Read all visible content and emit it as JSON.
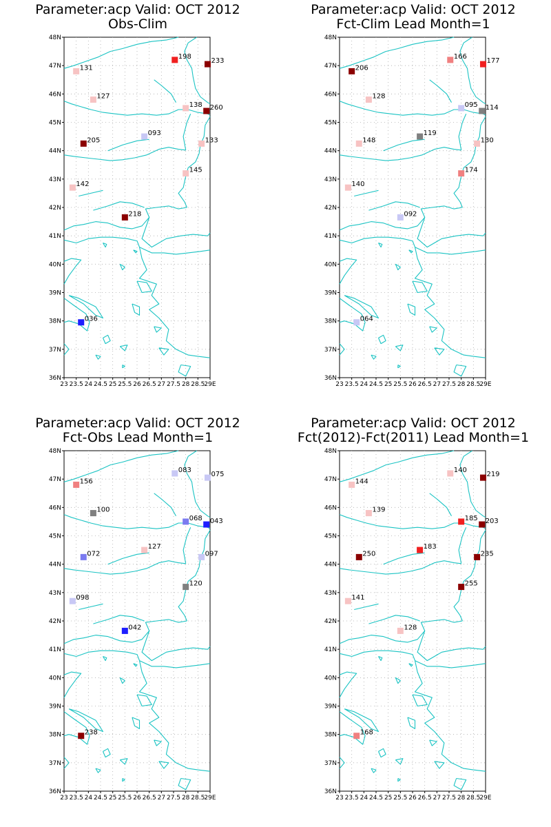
{
  "lon_labels": [
    "23",
    "23.5",
    "24",
    "24.5",
    "25",
    "25.5",
    "26",
    "26.5",
    "27",
    "27.5",
    "28",
    "28.5",
    "29E"
  ],
  "lat_labels": [
    "36N",
    "37N",
    "38N",
    "39N",
    "40N",
    "41N",
    "42N",
    "43N",
    "44N",
    "45N",
    "46N",
    "47N",
    "48N"
  ],
  "map_extent": {
    "lon": [
      23,
      29
    ],
    "lat": [
      36,
      48
    ]
  },
  "coast_color": "#19c3c3",
  "color_scale": {
    "below_low": "#1e1eff",
    "low": "#7b7bf0",
    "pale_low": "#c8c8f5",
    "neutral": "#808080",
    "pale_high": "#f7c3c3",
    "mid_high": "#f08080",
    "high": "#f02020",
    "very_high": "#8b0000"
  },
  "panels": [
    {
      "title_line1": "Parameter:acp Valid: OCT 2012",
      "title_line2": "Obs-Clim",
      "stations": [
        {
          "lon": 23.5,
          "lat": 46.8,
          "label": "131",
          "color": "#f7c3c3"
        },
        {
          "lon": 24.2,
          "lat": 45.8,
          "label": "127",
          "color": "#f7c3c3"
        },
        {
          "lon": 23.8,
          "lat": 44.25,
          "label": "205",
          "color": "#8b0000"
        },
        {
          "lon": 26.3,
          "lat": 44.5,
          "label": "093",
          "color": "#c8c8f5"
        },
        {
          "lon": 27.55,
          "lat": 47.2,
          "label": "198",
          "color": "#f02020"
        },
        {
          "lon": 28.9,
          "lat": 47.05,
          "label": "233",
          "color": "#8b0000"
        },
        {
          "lon": 28.0,
          "lat": 45.5,
          "label": "138",
          "color": "#f7c3c3"
        },
        {
          "lon": 28.85,
          "lat": 45.4,
          "label": "260",
          "color": "#8b0000"
        },
        {
          "lon": 28.65,
          "lat": 44.25,
          "label": "133",
          "color": "#f7c3c3"
        },
        {
          "lon": 28.0,
          "lat": 43.2,
          "label": "145",
          "color": "#f7c3c3"
        },
        {
          "lon": 23.35,
          "lat": 42.7,
          "label": "142",
          "color": "#f7c3c3"
        },
        {
          "lon": 25.5,
          "lat": 41.65,
          "label": "218",
          "color": "#8b0000"
        },
        {
          "lon": 23.7,
          "lat": 37.95,
          "label": "036",
          "color": "#1e1eff"
        }
      ]
    },
    {
      "title_line1": "Parameter:acp Valid: OCT 2012",
      "title_line2": "Fct-Clim Lead Month=1",
      "stations": [
        {
          "lon": 23.5,
          "lat": 46.8,
          "label": "206",
          "color": "#8b0000"
        },
        {
          "lon": 24.2,
          "lat": 45.8,
          "label": "128",
          "color": "#f7c3c3"
        },
        {
          "lon": 23.8,
          "lat": 44.25,
          "label": "148",
          "color": "#f7c3c3"
        },
        {
          "lon": 26.3,
          "lat": 44.5,
          "label": "119",
          "color": "#808080"
        },
        {
          "lon": 27.55,
          "lat": 47.2,
          "label": "166",
          "color": "#f08080"
        },
        {
          "lon": 28.9,
          "lat": 47.05,
          "label": "177",
          "color": "#f02020"
        },
        {
          "lon": 28.0,
          "lat": 45.5,
          "label": "095",
          "color": "#c8c8f5"
        },
        {
          "lon": 28.85,
          "lat": 45.4,
          "label": "114",
          "color": "#808080"
        },
        {
          "lon": 28.65,
          "lat": 44.25,
          "label": "130",
          "color": "#f7c3c3"
        },
        {
          "lon": 28.0,
          "lat": 43.2,
          "label": "174",
          "color": "#f08080"
        },
        {
          "lon": 23.35,
          "lat": 42.7,
          "label": "140",
          "color": "#f7c3c3"
        },
        {
          "lon": 25.5,
          "lat": 41.65,
          "label": "092",
          "color": "#c8c8f5"
        },
        {
          "lon": 23.7,
          "lat": 37.95,
          "label": "064",
          "color": "#c8c8f5"
        }
      ]
    },
    {
      "title_line1": "Parameter:acp Valid: OCT 2012",
      "title_line2": "Fct-Obs Lead Month=1",
      "stations": [
        {
          "lon": 23.5,
          "lat": 46.8,
          "label": "156",
          "color": "#f08080"
        },
        {
          "lon": 24.2,
          "lat": 45.8,
          "label": "100",
          "color": "#808080"
        },
        {
          "lon": 23.8,
          "lat": 44.25,
          "label": "072",
          "color": "#7b7bf0"
        },
        {
          "lon": 26.3,
          "lat": 44.5,
          "label": "127",
          "color": "#f7c3c3"
        },
        {
          "lon": 27.55,
          "lat": 47.2,
          "label": "083",
          "color": "#c8c8f5"
        },
        {
          "lon": 28.9,
          "lat": 47.05,
          "label": "075",
          "color": "#c8c8f5"
        },
        {
          "lon": 28.0,
          "lat": 45.5,
          "label": "068",
          "color": "#7b7bf0"
        },
        {
          "lon": 28.85,
          "lat": 45.4,
          "label": "043",
          "color": "#1e1eff"
        },
        {
          "lon": 28.65,
          "lat": 44.25,
          "label": "097",
          "color": "#c8c8f5"
        },
        {
          "lon": 28.0,
          "lat": 43.2,
          "label": "120",
          "color": "#808080"
        },
        {
          "lon": 23.35,
          "lat": 42.7,
          "label": "098",
          "color": "#c8c8f5"
        },
        {
          "lon": 25.5,
          "lat": 41.65,
          "label": "042",
          "color": "#1e1eff"
        },
        {
          "lon": 23.7,
          "lat": 37.95,
          "label": "238",
          "color": "#8b0000"
        }
      ]
    },
    {
      "title_line1": "Parameter:acp Valid: OCT 2012",
      "title_line2": "Fct(2012)-Fct(2011) Lead Month=1",
      "stations": [
        {
          "lon": 23.5,
          "lat": 46.8,
          "label": "144",
          "color": "#f7c3c3"
        },
        {
          "lon": 24.2,
          "lat": 45.8,
          "label": "139",
          "color": "#f7c3c3"
        },
        {
          "lon": 23.8,
          "lat": 44.25,
          "label": "250",
          "color": "#8b0000"
        },
        {
          "lon": 26.3,
          "lat": 44.5,
          "label": "183",
          "color": "#f02020"
        },
        {
          "lon": 27.55,
          "lat": 47.2,
          "label": "140",
          "color": "#f7c3c3"
        },
        {
          "lon": 28.9,
          "lat": 47.05,
          "label": "219",
          "color": "#8b0000"
        },
        {
          "lon": 28.0,
          "lat": 45.5,
          "label": "185",
          "color": "#f02020"
        },
        {
          "lon": 28.85,
          "lat": 45.4,
          "label": "203",
          "color": "#8b0000"
        },
        {
          "lon": 28.65,
          "lat": 44.25,
          "label": "235",
          "color": "#8b0000"
        },
        {
          "lon": 28.0,
          "lat": 43.2,
          "label": "255",
          "color": "#8b0000"
        },
        {
          "lon": 23.35,
          "lat": 42.7,
          "label": "141",
          "color": "#f7c3c3"
        },
        {
          "lon": 25.5,
          "lat": 41.65,
          "label": "128",
          "color": "#f7c3c3"
        },
        {
          "lon": 23.7,
          "lat": 37.95,
          "label": "168",
          "color": "#f08080"
        }
      ]
    }
  ]
}
